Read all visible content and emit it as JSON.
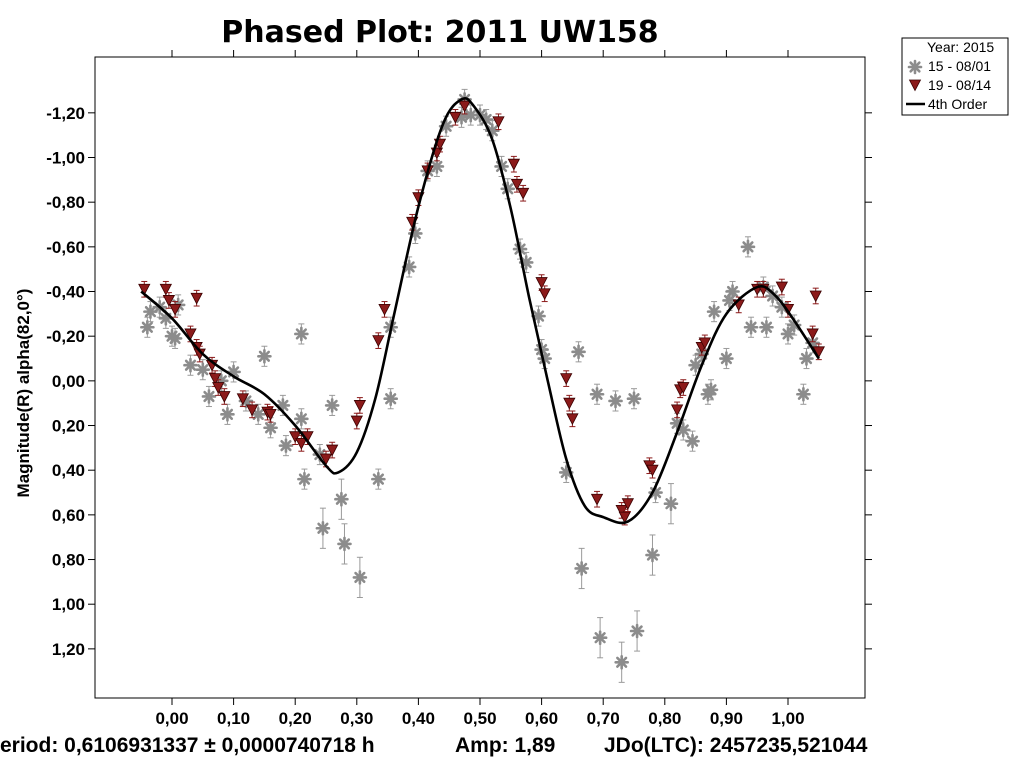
{
  "chart_data": {
    "type": "scatter",
    "title": "Phased Plot: 2011 UW158",
    "xlabel": "",
    "ylabel": "Magnitude(R) alpha(82,0°)",
    "xlim": [
      -0.125,
      1.125
    ],
    "ylim": [
      1.42,
      -1.45
    ],
    "y_inverted": true,
    "x_ticks": [
      "0,00",
      "0,10",
      "0,20",
      "0,30",
      "0,40",
      "0,50",
      "0,60",
      "0,70",
      "0,80",
      "0,90",
      "1,00"
    ],
    "y_ticks": [
      "-1,20",
      "-1,00",
      "-0,80",
      "-0,60",
      "-0,40",
      "-0,20",
      "0,00",
      "0,20",
      "0,40",
      "0,60",
      "0,80",
      "1,00",
      "1,20"
    ],
    "legend": {
      "placement": "top-right outside",
      "header": "Year: 2015",
      "entries": [
        "15 - 08/01",
        "19 - 08/14",
        "4th Order"
      ]
    },
    "series": [
      {
        "name": "15 - 08/01",
        "marker": "asterisk",
        "color": "#8c8c8c",
        "points": [
          [
            -0.04,
            -0.24
          ],
          [
            -0.035,
            -0.31
          ],
          [
            -0.02,
            -0.33
          ],
          [
            -0.01,
            -0.28
          ],
          [
            0.0,
            -0.2
          ],
          [
            0.005,
            -0.19
          ],
          [
            0.01,
            -0.34
          ],
          [
            0.03,
            -0.07
          ],
          [
            0.05,
            -0.05
          ],
          [
            0.06,
            0.07
          ],
          [
            0.08,
            0.0
          ],
          [
            0.09,
            0.15
          ],
          [
            0.1,
            -0.04
          ],
          [
            0.12,
            0.09
          ],
          [
            0.14,
            0.15
          ],
          [
            0.15,
            -0.11
          ],
          [
            0.16,
            0.21
          ],
          [
            0.18,
            0.11
          ],
          [
            0.185,
            0.29
          ],
          [
            0.21,
            0.17
          ],
          [
            0.21,
            -0.21
          ],
          [
            0.215,
            0.44
          ],
          [
            0.24,
            0.33
          ],
          [
            0.245,
            0.66
          ],
          [
            0.26,
            0.11
          ],
          [
            0.275,
            0.53
          ],
          [
            0.28,
            0.73
          ],
          [
            0.305,
            0.88
          ],
          [
            0.335,
            0.44
          ],
          [
            0.355,
            -0.24
          ],
          [
            0.355,
            0.08
          ],
          [
            0.385,
            -0.51
          ],
          [
            0.395,
            -0.66
          ],
          [
            0.415,
            -0.94
          ],
          [
            0.43,
            -0.96
          ],
          [
            0.445,
            -1.14
          ],
          [
            0.47,
            -1.18
          ],
          [
            0.475,
            -1.26
          ],
          [
            0.485,
            -1.19
          ],
          [
            0.5,
            -1.19
          ],
          [
            0.51,
            -1.17
          ],
          [
            0.52,
            -1.12
          ],
          [
            0.535,
            -0.96
          ],
          [
            0.545,
            -0.86
          ],
          [
            0.565,
            -0.59
          ],
          [
            0.575,
            -0.53
          ],
          [
            0.595,
            -0.29
          ],
          [
            0.6,
            -0.14
          ],
          [
            0.605,
            -0.1
          ],
          [
            0.64,
            0.41
          ],
          [
            0.66,
            -0.13
          ],
          [
            0.665,
            0.84
          ],
          [
            0.69,
            0.06
          ],
          [
            0.695,
            1.15
          ],
          [
            0.72,
            0.09
          ],
          [
            0.73,
            1.26
          ],
          [
            0.75,
            0.08
          ],
          [
            0.755,
            1.12
          ],
          [
            0.78,
            0.78
          ],
          [
            0.785,
            0.5
          ],
          [
            0.81,
            0.55
          ],
          [
            0.82,
            0.19
          ],
          [
            0.83,
            0.22
          ],
          [
            0.845,
            0.27
          ],
          [
            0.85,
            -0.07
          ],
          [
            0.86,
            -0.12
          ],
          [
            0.87,
            0.06
          ],
          [
            0.875,
            0.04
          ],
          [
            0.88,
            -0.31
          ],
          [
            0.9,
            -0.1
          ],
          [
            0.905,
            -0.36
          ],
          [
            0.91,
            -0.4
          ],
          [
            0.935,
            -0.6
          ],
          [
            0.94,
            -0.24
          ],
          [
            0.96,
            -0.42
          ],
          [
            0.965,
            -0.24
          ],
          [
            0.975,
            -0.38
          ],
          [
            0.99,
            -0.33
          ],
          [
            1.0,
            -0.21
          ],
          [
            1.01,
            -0.25
          ],
          [
            1.025,
            0.06
          ],
          [
            1.03,
            -0.1
          ],
          [
            1.04,
            -0.17
          ]
        ]
      },
      {
        "name": "19 - 08/14",
        "marker": "triangle-down",
        "color": "#8b1a1a",
        "points": [
          [
            -0.045,
            -0.41
          ],
          [
            -0.01,
            -0.41
          ],
          [
            -0.005,
            -0.36
          ],
          [
            0.005,
            -0.32
          ],
          [
            0.04,
            -0.37
          ],
          [
            0.03,
            -0.21
          ],
          [
            0.04,
            -0.15
          ],
          [
            0.045,
            -0.12
          ],
          [
            0.065,
            -0.07
          ],
          [
            0.07,
            -0.01
          ],
          [
            0.075,
            0.03
          ],
          [
            0.085,
            0.07
          ],
          [
            0.115,
            0.08
          ],
          [
            0.13,
            0.13
          ],
          [
            0.155,
            0.14
          ],
          [
            0.16,
            0.15
          ],
          [
            0.2,
            0.25
          ],
          [
            0.21,
            0.28
          ],
          [
            0.22,
            0.25
          ],
          [
            0.25,
            0.35
          ],
          [
            0.26,
            0.31
          ],
          [
            0.3,
            0.18
          ],
          [
            0.305,
            0.11
          ],
          [
            0.335,
            -0.18
          ],
          [
            0.345,
            -0.32
          ],
          [
            0.39,
            -0.71
          ],
          [
            0.4,
            -0.82
          ],
          [
            0.415,
            -0.94
          ],
          [
            0.43,
            -1.02
          ],
          [
            0.435,
            -1.06
          ],
          [
            0.46,
            -1.18
          ],
          [
            0.475,
            -1.23
          ],
          [
            0.53,
            -1.16
          ],
          [
            0.555,
            -0.97
          ],
          [
            0.56,
            -0.88
          ],
          [
            0.57,
            -0.84
          ],
          [
            0.6,
            -0.44
          ],
          [
            0.605,
            -0.39
          ],
          [
            0.64,
            -0.01
          ],
          [
            0.645,
            0.1
          ],
          [
            0.65,
            0.17
          ],
          [
            0.69,
            0.53
          ],
          [
            0.73,
            0.58
          ],
          [
            0.735,
            0.61
          ],
          [
            0.74,
            0.55
          ],
          [
            0.775,
            0.38
          ],
          [
            0.78,
            0.4
          ],
          [
            0.82,
            0.13
          ],
          [
            0.825,
            0.04
          ],
          [
            0.83,
            0.03
          ],
          [
            0.86,
            -0.15
          ],
          [
            0.865,
            -0.17
          ],
          [
            0.92,
            -0.34
          ],
          [
            0.95,
            -0.41
          ],
          [
            0.96,
            -0.41
          ],
          [
            0.99,
            -0.42
          ],
          [
            1.0,
            -0.32
          ],
          [
            1.04,
            -0.21
          ],
          [
            1.045,
            -0.38
          ],
          [
            1.05,
            -0.13
          ]
        ]
      },
      {
        "name": "4th Order",
        "marker": "line",
        "color": "#000000",
        "points": [
          [
            -0.05,
            -0.4
          ],
          [
            0.0,
            -0.28
          ],
          [
            0.05,
            -0.12
          ],
          [
            0.1,
            -0.02
          ],
          [
            0.15,
            0.06
          ],
          [
            0.2,
            0.2
          ],
          [
            0.25,
            0.38
          ],
          [
            0.27,
            0.41
          ],
          [
            0.3,
            0.32
          ],
          [
            0.33,
            0.08
          ],
          [
            0.36,
            -0.29
          ],
          [
            0.4,
            -0.78
          ],
          [
            0.44,
            -1.15
          ],
          [
            0.47,
            -1.26
          ],
          [
            0.49,
            -1.23
          ],
          [
            0.52,
            -1.08
          ],
          [
            0.55,
            -0.77
          ],
          [
            0.58,
            -0.37
          ],
          [
            0.61,
            0.0
          ],
          [
            0.64,
            0.35
          ],
          [
            0.67,
            0.56
          ],
          [
            0.7,
            0.61
          ],
          [
            0.74,
            0.63
          ],
          [
            0.78,
            0.5
          ],
          [
            0.82,
            0.23
          ],
          [
            0.86,
            -0.07
          ],
          [
            0.9,
            -0.3
          ],
          [
            0.95,
            -0.42
          ],
          [
            0.98,
            -0.38
          ],
          [
            1.01,
            -0.27
          ],
          [
            1.05,
            -0.1
          ]
        ]
      }
    ]
  },
  "footer": {
    "period": "eriod: 0,6106931337 ± 0,0000740718 h",
    "amp": "Amp: 1,89",
    "jdo": "JDo(LTC): 2457235,521044"
  }
}
